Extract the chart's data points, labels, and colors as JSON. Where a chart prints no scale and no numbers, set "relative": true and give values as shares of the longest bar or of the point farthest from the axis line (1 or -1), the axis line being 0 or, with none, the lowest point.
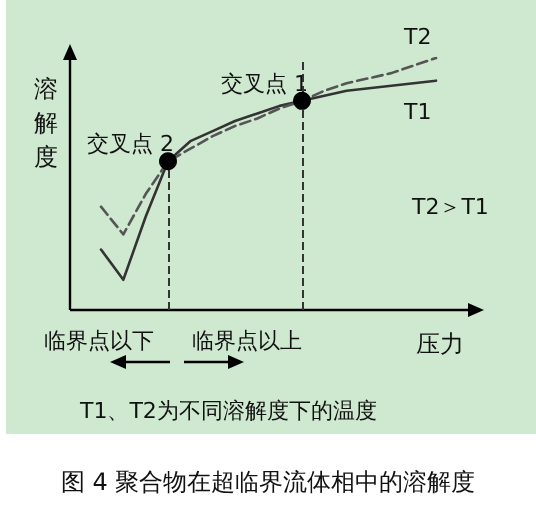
{
  "chart_data": {
    "type": "line",
    "relative": true,
    "title": "图 4 聚合物在超临界流体相中的溶解度",
    "xlabel": "压力",
    "ylabel": "溶解度",
    "categories": [
      null,
      null,
      null,
      null,
      null,
      null,
      null,
      null,
      null,
      null,
      null,
      null,
      null,
      null,
      null,
      null
    ],
    "series": [
      {
        "name": "T1",
        "color": "#333333",
        "line_style": "solid",
        "values": [
          0.24,
          0.12,
          0.37,
          0.59,
          0.67,
          0.71,
          0.75,
          0.78,
          0.81,
          0.83,
          0.85,
          0.87,
          0.88,
          0.89,
          0.9,
          0.91
        ]
      },
      {
        "name": "T2",
        "color": "#555555",
        "line_style": "dashed",
        "values": [
          0.41,
          0.3,
          0.46,
          0.59,
          0.64,
          0.69,
          0.73,
          0.76,
          0.8,
          0.83,
          0.87,
          0.9,
          0.92,
          0.94,
          0.97,
          1
        ]
      }
    ],
    "annotations": [
      "交叉点 1",
      "交叉点 2",
      "T2＞T1",
      "临界点以下",
      "临界点以上",
      "T1、T2为不同溶解度下的温度"
    ],
    "grid": false,
    "legend": false,
    "marker": "none"
  }
}
